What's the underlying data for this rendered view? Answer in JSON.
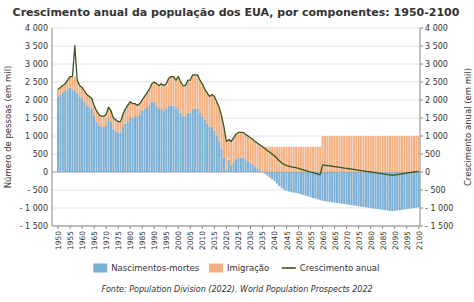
{
  "chart_data": {
    "type": "bar",
    "title": "Crescimento anual da população dos EUA, por componentes: 1950-2100",
    "ylabel": "Número de pessoas (em mil)",
    "y2label": "Crescimento anual (em mil)",
    "source": "Fonte: Population Division (2022). World Population Prospects 2022",
    "stacked": true,
    "grid": true,
    "legend": "bottom",
    "x": [
      1950,
      1951,
      1952,
      1953,
      1954,
      1955,
      1956,
      1957,
      1958,
      1959,
      1960,
      1961,
      1962,
      1963,
      1964,
      1965,
      1966,
      1967,
      1968,
      1969,
      1970,
      1971,
      1972,
      1973,
      1974,
      1975,
      1976,
      1977,
      1978,
      1979,
      1980,
      1981,
      1982,
      1983,
      1984,
      1985,
      1986,
      1987,
      1988,
      1989,
      1990,
      1991,
      1992,
      1993,
      1994,
      1995,
      1996,
      1997,
      1998,
      1999,
      2000,
      2001,
      2002,
      2003,
      2004,
      2005,
      2006,
      2007,
      2008,
      2009,
      2010,
      2011,
      2012,
      2013,
      2014,
      2015,
      2016,
      2017,
      2018,
      2019,
      2020,
      2021,
      2022,
      2023,
      2024,
      2025,
      2026,
      2027,
      2028,
      2029,
      2030,
      2031,
      2032,
      2033,
      2034,
      2035,
      2036,
      2037,
      2038,
      2039,
      2040,
      2041,
      2042,
      2043,
      2044,
      2045,
      2046,
      2047,
      2048,
      2049,
      2050,
      2051,
      2052,
      2053,
      2054,
      2055,
      2056,
      2057,
      2058,
      2059,
      2060,
      2061,
      2062,
      2063,
      2064,
      2065,
      2066,
      2067,
      2068,
      2069,
      2070,
      2071,
      2072,
      2073,
      2074,
      2075,
      2076,
      2077,
      2078,
      2079,
      2080,
      2081,
      2082,
      2083,
      2084,
      2085,
      2086,
      2087,
      2088,
      2089,
      2090,
      2091,
      2092,
      2093,
      2094,
      2095,
      2096,
      2097,
      2098,
      2099,
      2100
    ],
    "xlim": [
      1947.5,
      2100.5
    ],
    "xticks": [
      1950,
      1955,
      1960,
      1965,
      1970,
      1975,
      1980,
      1985,
      1990,
      1995,
      2000,
      2005,
      2010,
      2015,
      2020,
      2025,
      2030,
      2035,
      2040,
      2045,
      2050,
      2055,
      2060,
      2065,
      2070,
      2075,
      2080,
      2085,
      2090,
      2095,
      2100
    ],
    "ylim": [
      -1500,
      4000
    ],
    "yticks": [
      {
        "value": -1500,
        "label": "- 1 500"
      },
      {
        "value": -1000,
        "label": "- 1 000"
      },
      {
        "value": -500,
        "label": "- 500"
      },
      0,
      500,
      {
        "value": 1000,
        "label": "1 000"
      },
      {
        "value": 1500,
        "label": "1 500"
      },
      {
        "value": 2000,
        "label": "2 000"
      },
      {
        "value": 2500,
        "label": "2 500"
      },
      {
        "value": 3000,
        "label": "3 000"
      },
      {
        "value": 3500,
        "label": "3 500"
      },
      {
        "value": 4000,
        "label": "4 000"
      }
    ],
    "y2lim": [
      -1500,
      4000
    ],
    "y2ticks": [
      {
        "value": -1500,
        "label": "- 1 500"
      },
      {
        "value": -1000,
        "label": "- 1 000"
      },
      {
        "value": -500,
        "label": "- 500"
      },
      0,
      500,
      {
        "value": 1000,
        "label": "1 000"
      },
      {
        "value": 1500,
        "label": "1 500"
      },
      {
        "value": 2000,
        "label": "2 000"
      },
      {
        "value": 2500,
        "label": "2 500"
      },
      {
        "value": 3000,
        "label": "3 000"
      },
      {
        "value": 3500,
        "label": "3 500"
      },
      {
        "value": 4000,
        "label": "4 000"
      }
    ],
    "series": [
      {
        "name": "Nascimentos-mortes",
        "type": "bar",
        "color": "#7bafd4",
        "values": [
          2100,
          2150,
          2200,
          2250,
          2300,
          2350,
          2300,
          2250,
          2200,
          2100,
          2050,
          1950,
          1850,
          1800,
          1750,
          1550,
          1400,
          1300,
          1250,
          1250,
          1300,
          1500,
          1400,
          1200,
          1150,
          1100,
          1100,
          1250,
          1350,
          1400,
          1500,
          1500,
          1550,
          1550,
          1600,
          1700,
          1750,
          1800,
          1850,
          1950,
          1950,
          1850,
          1750,
          1750,
          1700,
          1750,
          1850,
          1850,
          1850,
          1750,
          1800,
          1650,
          1550,
          1550,
          1650,
          1650,
          1750,
          1750,
          1750,
          1650,
          1550,
          1450,
          1350,
          1250,
          1250,
          1150,
          1000,
          850,
          650,
          400,
          50,
          350,
          200,
          250,
          350,
          400,
          400,
          400,
          350,
          300,
          250,
          200,
          150,
          100,
          50,
          0,
          -50,
          -100,
          -150,
          -200,
          -250,
          -320,
          -390,
          -450,
          -490,
          -520,
          -540,
          -560,
          -570,
          -580,
          -600,
          -620,
          -640,
          -660,
          -680,
          -700,
          -720,
          -740,
          -760,
          -780,
          -800,
          -810,
          -820,
          -830,
          -840,
          -850,
          -860,
          -870,
          -880,
          -890,
          -900,
          -910,
          -920,
          -930,
          -940,
          -950,
          -960,
          -970,
          -980,
          -990,
          -1000,
          -1010,
          -1020,
          -1030,
          -1040,
          -1050,
          -1060,
          -1070,
          -1080,
          -1090,
          -1080,
          -1070,
          -1060,
          -1050,
          -1040,
          -1030,
          -1020,
          -1010,
          -1000,
          -990,
          -980
        ]
      },
      {
        "name": "Imigração",
        "type": "bar",
        "color": "#f4b183",
        "values": [
          200,
          200,
          200,
          200,
          250,
          300,
          350,
          400,
          350,
          300,
          300,
          300,
          300,
          300,
          300,
          300,
          300,
          300,
          300,
          300,
          300,
          300,
          300,
          300,
          300,
          300,
          300,
          350,
          400,
          450,
          450,
          400,
          350,
          300,
          300,
          300,
          350,
          400,
          450,
          500,
          550,
          600,
          650,
          700,
          700,
          700,
          750,
          800,
          800,
          800,
          850,
          850,
          850,
          850,
          900,
          900,
          950,
          950,
          950,
          900,
          900,
          850,
          850,
          850,
          900,
          950,
          950,
          950,
          900,
          850,
          800,
          550,
          650,
          700,
          700,
          700,
          700,
          700,
          700,
          700,
          700,
          700,
          700,
          700,
          700,
          700,
          700,
          700,
          700,
          700,
          700,
          700,
          700,
          700,
          700,
          700,
          700,
          700,
          700,
          700,
          700,
          700,
          700,
          700,
          700,
          700,
          700,
          700,
          700,
          700,
          1000,
          1000,
          1000,
          1000,
          1000,
          1000,
          1000,
          1000,
          1000,
          1000,
          1000,
          1000,
          1000,
          1000,
          1000,
          1000,
          1000,
          1000,
          1000,
          1000,
          1000,
          1000,
          1000,
          1000,
          1000,
          1000,
          1000,
          1000,
          1000,
          1000,
          1000,
          1000,
          1000,
          1000,
          1000,
          1000,
          1000,
          1000,
          1000,
          1000,
          1000
        ]
      },
      {
        "name": "Crescimento anual",
        "type": "line",
        "axis": "y2",
        "color": "#375623",
        "values": [
          2300,
          2350,
          2400,
          2450,
          2550,
          2650,
          2650,
          3500,
          2550,
          2400,
          2350,
          2250,
          2150,
          2100,
          2050,
          1850,
          1700,
          1600,
          1550,
          1550,
          1600,
          1800,
          1700,
          1500,
          1450,
          1400,
          1400,
          1600,
          1750,
          1850,
          1950,
          1900,
          1900,
          1850,
          1900,
          2000,
          2100,
          2200,
          2300,
          2450,
          2500,
          2450,
          2400,
          2450,
          2400,
          2450,
          2600,
          2650,
          2650,
          2550,
          2650,
          2500,
          2400,
          2400,
          2550,
          2550,
          2700,
          2700,
          2700,
          2550,
          2450,
          2300,
          2200,
          2100,
          2150,
          2100,
          1950,
          1800,
          1550,
          1250,
          850,
          900,
          850,
          950,
          1050,
          1100,
          1100,
          1100,
          1050,
          1000,
          950,
          900,
          850,
          800,
          750,
          700,
          650,
          600,
          550,
          500,
          450,
          380,
          310,
          250,
          210,
          180,
          160,
          140,
          130,
          120,
          100,
          80,
          60,
          40,
          20,
          0,
          -20,
          -40,
          -60,
          -80,
          200,
          190,
          180,
          170,
          160,
          150,
          140,
          130,
          120,
          110,
          100,
          90,
          80,
          70,
          60,
          50,
          40,
          30,
          20,
          10,
          0,
          -10,
          -20,
          -30,
          -40,
          -50,
          -60,
          -70,
          -80,
          -90,
          -80,
          -70,
          -60,
          -50,
          -40,
          -30,
          -20,
          -10,
          0,
          10,
          20
        ]
      }
    ]
  }
}
